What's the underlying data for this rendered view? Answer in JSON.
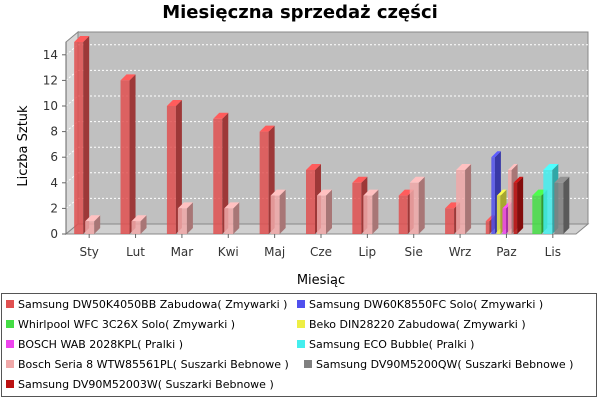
{
  "chart_data": {
    "type": "bar",
    "title": "Miesięczna sprzedaż części",
    "xlabel": "Miesiąc",
    "ylabel": "Liczba Sztuk",
    "ylim": [
      0,
      15
    ],
    "yticks": [
      0,
      2,
      4,
      6,
      8,
      10,
      12,
      14
    ],
    "grid": true,
    "legend_position": "bottom",
    "categories": [
      "Sty",
      "Lut",
      "Mar",
      "Kwi",
      "Maj",
      "Cze",
      "Lip",
      "Sie",
      "Wrz",
      "Paz",
      "Lis"
    ],
    "series": [
      {
        "name": "Samsung DW50K4050BB Zabudowa( Zmywarki )",
        "color": "#e05050",
        "values": [
          15,
          12,
          10,
          9,
          8,
          5,
          4,
          3,
          2,
          1,
          null
        ]
      },
      {
        "name": "Samsung DW60K8550FC Solo( Zmywarki )",
        "color": "#5050ee",
        "values": [
          null,
          null,
          null,
          null,
          null,
          null,
          null,
          null,
          null,
          6,
          null
        ]
      },
      {
        "name": "Whirlpool WFC 3C26X Solo( Zmywarki )",
        "color": "#44dd44",
        "values": [
          null,
          null,
          null,
          null,
          null,
          null,
          null,
          null,
          null,
          null,
          3
        ]
      },
      {
        "name": "Beko DIN28220 Zabudowa( Zmywarki )",
        "color": "#eeee44",
        "values": [
          null,
          null,
          null,
          null,
          null,
          null,
          null,
          null,
          null,
          3,
          null
        ]
      },
      {
        "name": "BOSCH WAB 2028KPL( Pralki )",
        "color": "#ee44ee",
        "values": [
          null,
          null,
          null,
          null,
          null,
          null,
          null,
          null,
          null,
          2,
          null
        ]
      },
      {
        "name": "Samsung ECO Bubble( Pralki )",
        "color": "#44eeee",
        "values": [
          null,
          null,
          null,
          null,
          null,
          null,
          null,
          null,
          null,
          null,
          5
        ]
      },
      {
        "name": "Bosch Seria 8 WTW85561PL( Suszarki Bebnowe )",
        "color": "#f0a8a8",
        "values": [
          1,
          1,
          2,
          2,
          3,
          3,
          3,
          4,
          5,
          5,
          null
        ]
      },
      {
        "name": "Samsung DV90M5200QW( Suszarki Bebnowe )",
        "color": "#808080",
        "values": [
          null,
          null,
          null,
          null,
          null,
          null,
          null,
          null,
          null,
          null,
          4
        ]
      },
      {
        "name": "Samsung DV90M52003W( Suszarki Bebnowe )",
        "color": "#bb1111",
        "values": [
          null,
          null,
          null,
          null,
          null,
          null,
          null,
          null,
          null,
          4,
          null
        ]
      }
    ]
  }
}
